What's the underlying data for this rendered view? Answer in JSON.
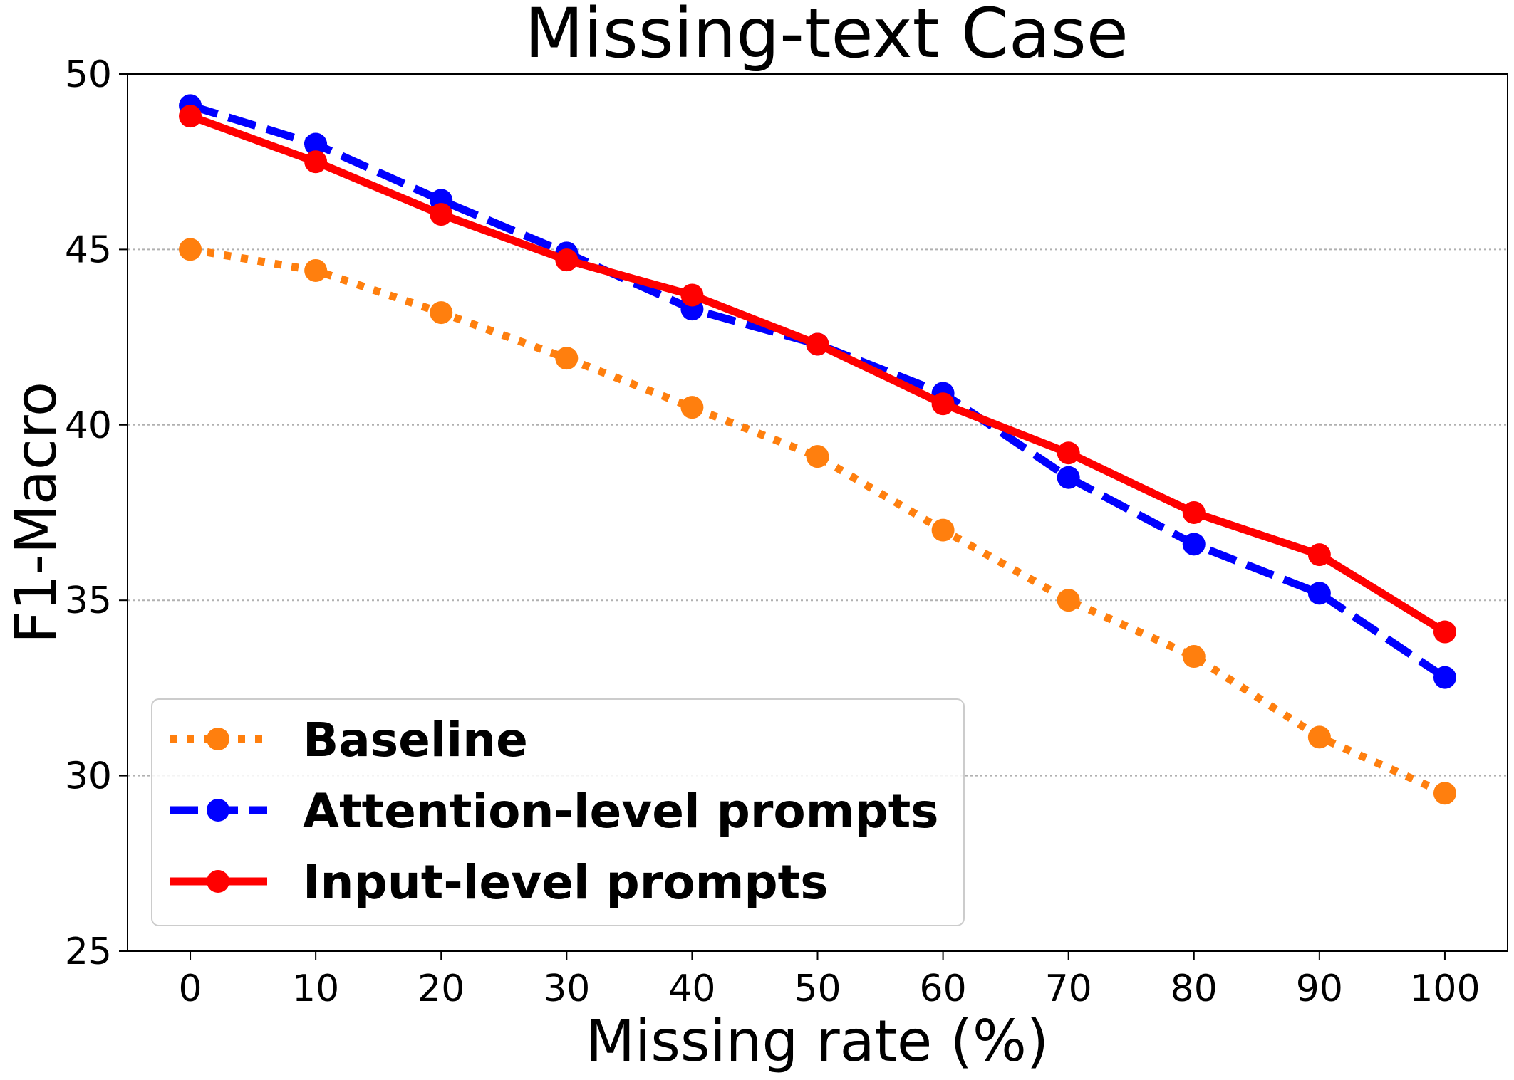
{
  "chart_data": {
    "type": "line",
    "title": "Missing-text Case",
    "xlabel": "Missing rate (%)",
    "ylabel": "F1-Macro",
    "x": [
      0,
      10,
      20,
      30,
      40,
      50,
      60,
      70,
      80,
      90,
      100
    ],
    "xticks": [
      "0",
      "10",
      "20",
      "30",
      "40",
      "50",
      "60",
      "70",
      "80",
      "90",
      "100"
    ],
    "yticks": [
      "25",
      "30",
      "35",
      "40",
      "45",
      "50"
    ],
    "xlim": [
      -5,
      105
    ],
    "ylim": [
      25,
      50
    ],
    "grid": "horizontal dotted",
    "legend_position": "lower-left",
    "series": [
      {
        "name": "Baseline",
        "style": "dotted",
        "color": "#ff7f0e",
        "values": [
          45.0,
          44.4,
          43.2,
          41.9,
          40.5,
          39.1,
          37.0,
          35.0,
          33.4,
          31.1,
          29.5
        ]
      },
      {
        "name": "Attention-level prompts",
        "style": "dashed",
        "color": "#0000ff",
        "values": [
          49.1,
          48.0,
          46.4,
          44.9,
          43.3,
          42.3,
          40.9,
          38.5,
          36.6,
          35.2,
          32.8
        ]
      },
      {
        "name": "Input-level prompts",
        "style": "solid",
        "color": "#ff0000",
        "values": [
          48.8,
          47.5,
          46.0,
          44.7,
          43.7,
          42.3,
          40.6,
          39.2,
          37.5,
          36.3,
          34.1
        ]
      }
    ]
  }
}
